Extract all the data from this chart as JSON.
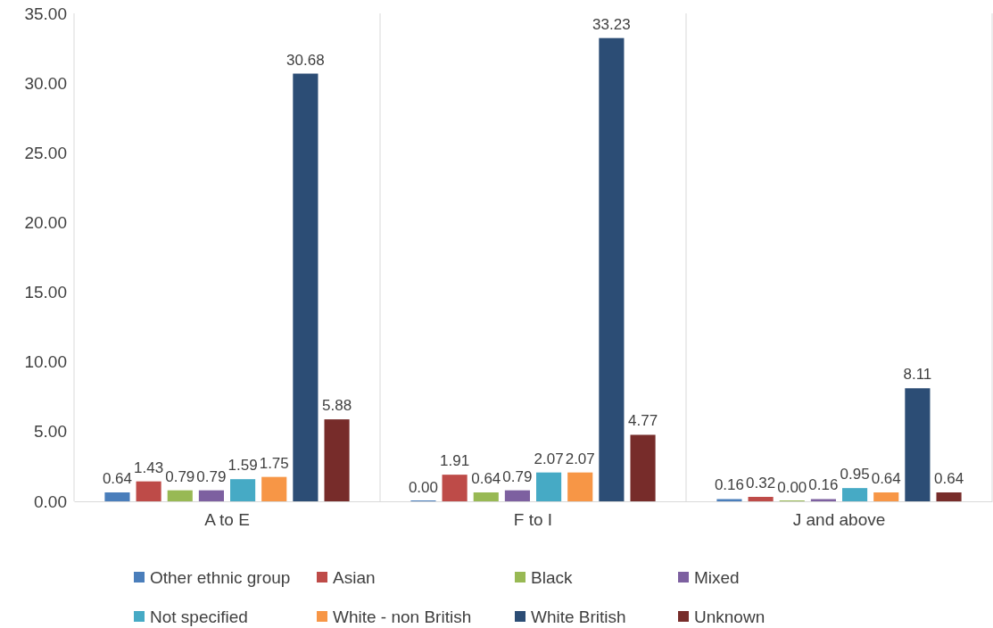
{
  "chart_data": {
    "type": "bar",
    "categories": [
      "A to E",
      "F to I",
      "J and above"
    ],
    "ylim": [
      0,
      35
    ],
    "yticks": [
      {
        "value": 0,
        "label": "0.00"
      },
      {
        "value": 5,
        "label": "5.00"
      },
      {
        "value": 10,
        "label": "10.00"
      },
      {
        "value": 15,
        "label": "15.00"
      },
      {
        "value": 20,
        "label": "20.00"
      },
      {
        "value": 25,
        "label": "25.00"
      },
      {
        "value": 30,
        "label": "30.00"
      },
      {
        "value": 35,
        "label": "35.00"
      }
    ],
    "grid": "x",
    "legend": "bottom",
    "series": [
      {
        "name": "Other ethnic group",
        "color": "#4a7ebb",
        "values": [
          0.64,
          0.0,
          0.16
        ],
        "value_labels": [
          "0.64",
          "0.00",
          "0.16"
        ]
      },
      {
        "name": "Asian",
        "color": "#be4b48",
        "values": [
          1.43,
          1.91,
          0.32
        ],
        "value_labels": [
          "1.43",
          "1.91",
          "0.32"
        ]
      },
      {
        "name": "Black",
        "color": "#98b954",
        "values": [
          0.79,
          0.64,
          0.0
        ],
        "value_labels": [
          "0.79",
          "0.64",
          "0.00"
        ]
      },
      {
        "name": "Mixed",
        "color": "#7d60a0",
        "values": [
          0.79,
          0.79,
          0.16
        ],
        "value_labels": [
          "0.79",
          "0.79",
          "0.16"
        ]
      },
      {
        "name": "Not specified",
        "color": "#46aac5",
        "values": [
          1.59,
          2.07,
          0.95
        ],
        "value_labels": [
          "1.59",
          "2.07",
          "0.95"
        ]
      },
      {
        "name": "White - non British",
        "color": "#f79646",
        "values": [
          1.75,
          2.07,
          0.64
        ],
        "value_labels": [
          "1.75",
          "2.07",
          "0.64"
        ]
      },
      {
        "name": "White British",
        "color": "#2c4d75",
        "values": [
          30.68,
          33.23,
          8.11
        ],
        "value_labels": [
          "30.68",
          "33.23",
          "8.11"
        ]
      },
      {
        "name": "Unknown",
        "color": "#772c2a",
        "values": [
          5.88,
          4.77,
          0.64
        ],
        "value_labels": [
          "5.88",
          "4.77",
          "0.64"
        ]
      }
    ]
  }
}
